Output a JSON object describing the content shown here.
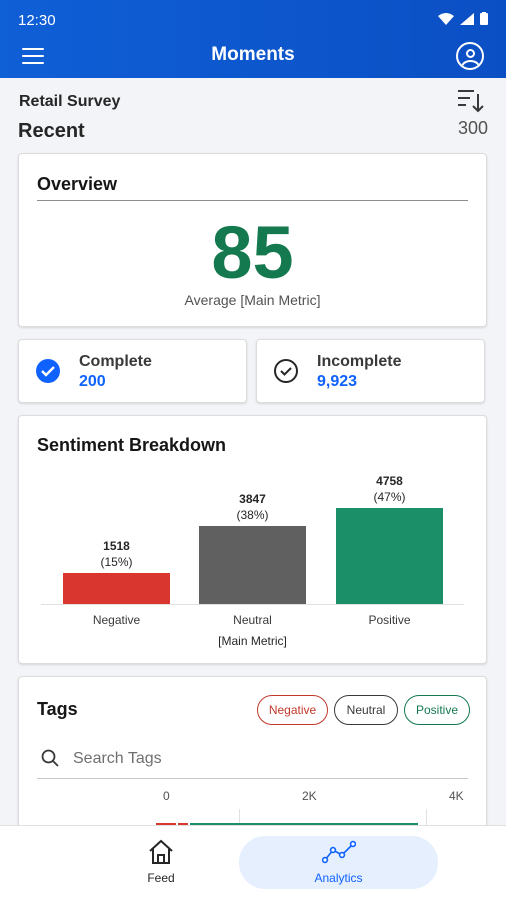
{
  "status_bar": {
    "time": "12:30"
  },
  "app_bar": {
    "title": "Moments"
  },
  "header": {
    "survey": "Retail Survey",
    "section": "Recent",
    "count": "300"
  },
  "overview": {
    "title": "Overview",
    "value": "85",
    "caption": "Average [Main Metric]"
  },
  "stats": {
    "complete": {
      "label": "Complete",
      "value": "200"
    },
    "incomplete": {
      "label": "Incomplete",
      "value": "9,923"
    }
  },
  "sentiment": {
    "title": "Sentiment Breakdown",
    "metric_label": "[Main Metric]",
    "chart_data": {
      "type": "bar",
      "categories": [
        "Negative",
        "Neutral",
        "Positive"
      ],
      "values": [
        1518,
        3847,
        4758
      ],
      "value_labels": [
        "1518",
        "3847",
        "4758"
      ],
      "percent_labels": [
        "(15%)",
        "(38%)",
        "(47%)"
      ],
      "colors": [
        "#d93630",
        "#606060",
        "#1a8f68"
      ],
      "xlabel": "[Main Metric]",
      "ylim": [
        0,
        4758
      ]
    }
  },
  "tags": {
    "title": "Tags",
    "filters": {
      "negative": "Negative",
      "neutral": "Neutral",
      "positive": "Positive"
    },
    "search_placeholder": "Search Tags",
    "axis_ticks": [
      "0",
      "2K",
      "4K"
    ]
  },
  "bottom_nav": {
    "feed": "Feed",
    "analytics": "Analytics"
  },
  "colors": {
    "brand": "#0f62fe",
    "header": "#0b4fc4",
    "positive": "#14794f",
    "negative": "#d93630",
    "neutral": "#606060"
  }
}
